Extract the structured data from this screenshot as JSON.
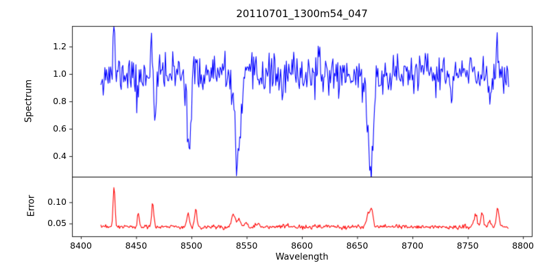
{
  "figure": {
    "background": "#ffffff",
    "axis_color": "#000000"
  },
  "chart_data": [
    {
      "type": "line",
      "role": "spectrum-subplot",
      "title": "20110701_1300m54_047",
      "ylabel": "Spectrum",
      "line_color": "#0000ff",
      "grid": false,
      "legend": "none",
      "xlim": [
        8392,
        8808
      ],
      "ylim": [
        0.25,
        1.35
      ],
      "yticks": [
        {
          "v": 0.4,
          "label": "0.4"
        },
        {
          "v": 0.6,
          "label": "0.6"
        },
        {
          "v": 0.8,
          "label": "0.8"
        },
        {
          "v": 1.0,
          "label": "1.0"
        },
        {
          "v": 1.2,
          "label": "1.2"
        }
      ],
      "xticks": [],
      "series": {
        "name": "spectrum",
        "x_start": 8418,
        "x_end": 8787,
        "n_points": 500,
        "baseline": 1.0,
        "noise_std": 0.07,
        "seed": 11,
        "features": [
          {
            "center": 8430,
            "amp": 0.3,
            "sigma": 0.8
          },
          {
            "center": 8451,
            "amp": -0.22,
            "sigma": 0.9
          },
          {
            "center": 8464,
            "amp": 0.33,
            "sigma": 0.8
          },
          {
            "center": 8467,
            "amp": -0.4,
            "sigma": 1.0
          },
          {
            "center": 8498,
            "amp": -0.55,
            "sigma": 1.6
          },
          {
            "center": 8542,
            "amp": -0.62,
            "sigma": 2.2
          },
          {
            "center": 8542,
            "amp": -0.08,
            "sigma": 7.0
          },
          {
            "center": 8583,
            "amp": -0.15,
            "sigma": 1.2
          },
          {
            "center": 8662,
            "amp": -0.63,
            "sigma": 2.2
          },
          {
            "center": 8662,
            "amp": -0.08,
            "sigma": 7.0
          },
          {
            "center": 8735,
            "amp": -0.18,
            "sigma": 1.2
          },
          {
            "center": 8770,
            "amp": -0.18,
            "sigma": 1.0
          },
          {
            "center": 8777,
            "amp": 0.25,
            "sigma": 0.9
          }
        ]
      }
    },
    {
      "type": "line",
      "role": "error-subplot",
      "ylabel": "Error",
      "xlabel": "Wavelength",
      "line_color": "#ff0000",
      "grid": false,
      "legend": "none",
      "xlim": [
        8392,
        8808
      ],
      "ylim": [
        0.02,
        0.16
      ],
      "yticks": [
        {
          "v": 0.05,
          "label": "0.05"
        },
        {
          "v": 0.1,
          "label": "0.10"
        }
      ],
      "xticks": [
        {
          "v": 8400,
          "label": "8400"
        },
        {
          "v": 8450,
          "label": "8450"
        },
        {
          "v": 8500,
          "label": "8500"
        },
        {
          "v": 8550,
          "label": "8550"
        },
        {
          "v": 8600,
          "label": "8600"
        },
        {
          "v": 8650,
          "label": "8650"
        },
        {
          "v": 8700,
          "label": "8700"
        },
        {
          "v": 8750,
          "label": "8750"
        },
        {
          "v": 8800,
          "label": "8800"
        }
      ],
      "series": {
        "name": "error",
        "x_start": 8418,
        "x_end": 8787,
        "n_points": 500,
        "baseline": 0.042,
        "noise_std": 0.0025,
        "seed": 23,
        "features": [
          {
            "center": 8430,
            "amp": 0.093,
            "sigma": 0.9
          },
          {
            "center": 8452,
            "amp": 0.033,
            "sigma": 0.8
          },
          {
            "center": 8465,
            "amp": 0.058,
            "sigma": 0.9
          },
          {
            "center": 8497,
            "amp": 0.03,
            "sigma": 1.2
          },
          {
            "center": 8504,
            "amp": 0.042,
            "sigma": 1.0
          },
          {
            "center": 8538,
            "amp": 0.03,
            "sigma": 1.5
          },
          {
            "center": 8543,
            "amp": 0.02,
            "sigma": 1.5
          },
          {
            "center": 8549,
            "amp": 0.012,
            "sigma": 1.5
          },
          {
            "center": 8560,
            "amp": 0.008,
            "sigma": 2.0
          },
          {
            "center": 8660,
            "amp": 0.03,
            "sigma": 1.5
          },
          {
            "center": 8663,
            "amp": 0.04,
            "sigma": 1.2
          },
          {
            "center": 8757,
            "amp": 0.026,
            "sigma": 1.5
          },
          {
            "center": 8763,
            "amp": 0.034,
            "sigma": 1.2
          },
          {
            "center": 8770,
            "amp": 0.012,
            "sigma": 1.5
          },
          {
            "center": 8777,
            "amp": 0.046,
            "sigma": 1.1
          }
        ]
      }
    }
  ]
}
